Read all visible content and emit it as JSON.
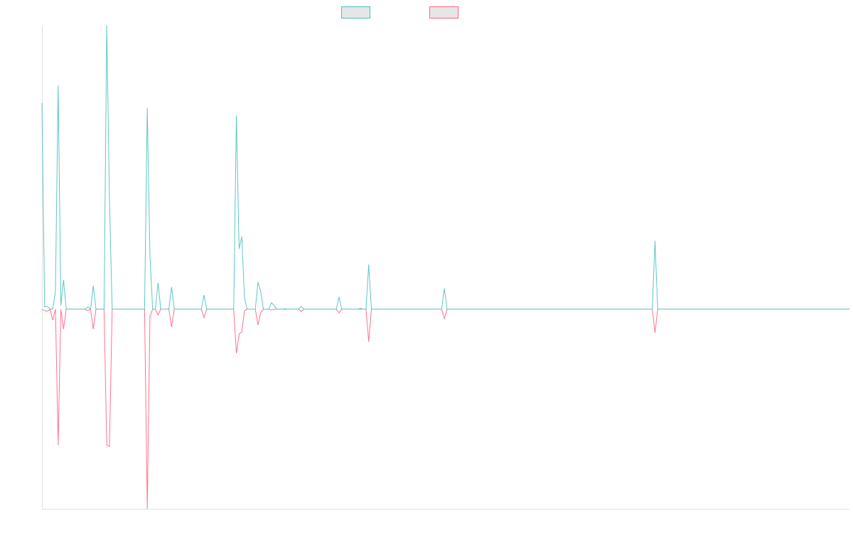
{
  "chart_data": {
    "type": "line",
    "categories": [
      null,
      null,
      null,
      null,
      null,
      null,
      null,
      null,
      null,
      null,
      null,
      null,
      null,
      null,
      null,
      null,
      null,
      null,
      null,
      null,
      null,
      null,
      null,
      null,
      null,
      null,
      null,
      null,
      null,
      null,
      null,
      null,
      null,
      null,
      null,
      null,
      null,
      null,
      null,
      null,
      null,
      null,
      null,
      null,
      null,
      null,
      null,
      null,
      null,
      null,
      null,
      null,
      null,
      null,
      null,
      null,
      null,
      null,
      null,
      null,
      null,
      null,
      null,
      null,
      null,
      null,
      null,
      null,
      null,
      null,
      null,
      null,
      null,
      null,
      null,
      null,
      null,
      null,
      null,
      null,
      null,
      null,
      null,
      null,
      null,
      null,
      null,
      null,
      null,
      null,
      null,
      null,
      null,
      null,
      null,
      null,
      null,
      null,
      null,
      null,
      null,
      null,
      null,
      null,
      null,
      null,
      null,
      null,
      null,
      null,
      null,
      null,
      null,
      null,
      null,
      null,
      null,
      null,
      null,
      null,
      null,
      null,
      null,
      null,
      null,
      null,
      null,
      null,
      null,
      null,
      null,
      null,
      null,
      null,
      null,
      null,
      null,
      null,
      null,
      null,
      null,
      null,
      null,
      null,
      null,
      null,
      null,
      null,
      null,
      null,
      null,
      null,
      null,
      null,
      null,
      null,
      null,
      null,
      null,
      null,
      null,
      null,
      null,
      null,
      null,
      null,
      null,
      null,
      null,
      null,
      null,
      null,
      null,
      null,
      null,
      null,
      null,
      null,
      null,
      null,
      null,
      null,
      null,
      null,
      null,
      null,
      null,
      null,
      null,
      null,
      null,
      null,
      null,
      null,
      null,
      null,
      null,
      null,
      null,
      null,
      null,
      null,
      null,
      null,
      null,
      null,
      null,
      null,
      null,
      null,
      null,
      null,
      null,
      null,
      null,
      null,
      null,
      null,
      null,
      null,
      null,
      null,
      null,
      null,
      null,
      null,
      null,
      null,
      null,
      null,
      null,
      null,
      null,
      null,
      null,
      null,
      null,
      null,
      null,
      null,
      null,
      null,
      null,
      null,
      null,
      null,
      null,
      null,
      null,
      null,
      null,
      null,
      null,
      null,
      null,
      null,
      null,
      null,
      null,
      null,
      null,
      null,
      null,
      null,
      null,
      null,
      null,
      null,
      null,
      null,
      null,
      null,
      null,
      null,
      null,
      null,
      null,
      null,
      null,
      null,
      null,
      null,
      null,
      null,
      null,
      null,
      null,
      null,
      null,
      null,
      null,
      null,
      null,
      null,
      null,
      null,
      null,
      null,
      null,
      null
    ],
    "series": [
      {
        "color": "#4bc0c0",
        "values": [
          727,
          8,
          10,
          0,
          0,
          63,
          789,
          13,
          103,
          0,
          0,
          0,
          0,
          0,
          0,
          0,
          0,
          8,
          0,
          83,
          0,
          0,
          0,
          0,
          1000,
          388,
          0,
          0,
          0,
          0,
          0,
          0,
          0,
          0,
          0,
          0,
          0,
          0,
          0,
          709,
          188,
          0,
          0,
          93,
          0,
          0,
          0,
          0,
          78,
          0,
          0,
          0,
          0,
          0,
          0,
          0,
          0,
          0,
          0,
          0,
          50,
          0,
          0,
          0,
          0,
          0,
          0,
          0,
          0,
          0,
          0,
          0,
          684,
          213,
          256,
          38,
          0,
          0,
          0,
          0,
          95,
          63,
          0,
          0,
          0,
          23,
          13,
          0,
          0,
          0,
          2,
          0,
          0,
          0,
          0,
          0,
          10,
          0,
          0,
          0,
          0,
          0,
          0,
          0,
          0,
          0,
          0,
          0,
          0,
          0,
          43,
          0,
          0,
          0,
          0,
          0,
          0,
          0,
          3,
          0,
          0,
          158,
          0,
          0,
          0,
          0,
          0,
          0,
          0,
          0,
          0,
          0,
          0,
          0,
          0,
          0,
          0,
          0,
          0,
          0,
          0,
          0,
          0,
          0,
          0,
          0,
          0,
          0,
          0,
          73,
          0,
          0,
          0,
          0,
          0,
          0,
          0,
          0,
          0,
          0,
          0,
          0,
          0,
          0,
          0,
          0,
          0,
          0,
          0,
          0,
          0,
          0,
          0,
          0,
          0,
          0,
          0,
          0,
          0,
          0,
          0,
          0,
          0,
          0,
          0,
          0,
          0,
          0,
          0,
          0,
          0,
          0,
          0,
          0,
          0,
          0,
          0,
          0,
          0,
          0,
          0,
          0,
          0,
          0,
          0,
          0,
          0,
          0,
          0,
          0,
          0,
          0,
          0,
          0,
          0,
          0,
          0,
          0,
          0,
          0,
          0,
          0,
          0,
          0,
          0,
          0,
          0,
          241,
          0,
          0,
          0,
          0,
          0,
          0,
          0,
          0,
          0,
          0,
          0,
          0,
          0,
          0,
          0,
          0,
          0,
          0,
          0,
          0,
          0,
          0,
          0,
          0,
          0,
          0,
          0,
          0,
          0,
          0,
          0,
          0,
          0,
          0,
          0,
          0,
          0,
          0,
          0,
          0,
          0,
          0,
          0,
          0,
          0,
          0,
          0,
          0,
          0,
          0,
          0,
          0,
          0,
          0,
          0,
          0,
          0,
          0,
          0,
          0,
          0,
          0,
          0,
          0,
          0,
          0,
          0,
          0,
          0,
          0,
          0,
          0
        ]
      },
      {
        "color": "#ff6384",
        "values": [
          0,
          -5,
          -8,
          0,
          -38,
          0,
          -479,
          0,
          -70,
          0,
          0,
          0,
          0,
          0,
          0,
          0,
          0,
          -5,
          0,
          -70,
          0,
          0,
          0,
          0,
          -479,
          -484,
          0,
          0,
          0,
          0,
          0,
          0,
          0,
          0,
          0,
          0,
          0,
          0,
          0,
          -704,
          -25,
          0,
          0,
          -20,
          0,
          0,
          0,
          0,
          -63,
          0,
          0,
          0,
          0,
          0,
          0,
          0,
          0,
          0,
          0,
          0,
          -30,
          0,
          0,
          0,
          0,
          0,
          0,
          0,
          0,
          0,
          0,
          0,
          -155,
          -88,
          -80,
          -5,
          0,
          0,
          0,
          0,
          -55,
          -13,
          0,
          0,
          0,
          -3,
          0,
          0,
          0,
          0,
          0,
          0,
          0,
          0,
          0,
          0,
          -8,
          0,
          0,
          0,
          0,
          0,
          0,
          0,
          0,
          0,
          0,
          0,
          0,
          0,
          -13,
          0,
          0,
          0,
          0,
          0,
          0,
          0,
          0,
          0,
          0,
          -115,
          0,
          0,
          0,
          0,
          0,
          0,
          0,
          0,
          0,
          0,
          0,
          0,
          0,
          0,
          0,
          0,
          0,
          0,
          0,
          0,
          0,
          0,
          0,
          0,
          0,
          0,
          0,
          -33,
          0,
          0,
          0,
          0,
          0,
          0,
          0,
          0,
          0,
          0,
          0,
          0,
          0,
          0,
          0,
          0,
          0,
          0,
          0,
          0,
          0,
          0,
          0,
          0,
          0,
          0,
          0,
          0,
          0,
          0,
          0,
          0,
          0,
          0,
          0,
          0,
          0,
          0,
          0,
          0,
          0,
          0,
          0,
          0,
          0,
          0,
          0,
          0,
          0,
          0,
          0,
          0,
          0,
          0,
          0,
          0,
          0,
          0,
          0,
          0,
          0,
          0,
          0,
          0,
          0,
          0,
          0,
          0,
          0,
          0,
          0,
          0,
          0,
          0,
          0,
          0,
          0,
          -83,
          0,
          0,
          0,
          0,
          0,
          0,
          0,
          0,
          0,
          0,
          0,
          0,
          0,
          0,
          0,
          0,
          0,
          0,
          0,
          0,
          0,
          0,
          0,
          0,
          0,
          0,
          0,
          0,
          0,
          0,
          0,
          0,
          0,
          0,
          0,
          0,
          0,
          0,
          0,
          0,
          0,
          0,
          0,
          0,
          0,
          0,
          0,
          0,
          0,
          0,
          0,
          0,
          0,
          0,
          0,
          0,
          0,
          0,
          0,
          0,
          0,
          0,
          0,
          0,
          0,
          0,
          0,
          0,
          0,
          0,
          0,
          0
        ]
      }
    ],
    "ylim": [
      -704,
      1000
    ]
  }
}
